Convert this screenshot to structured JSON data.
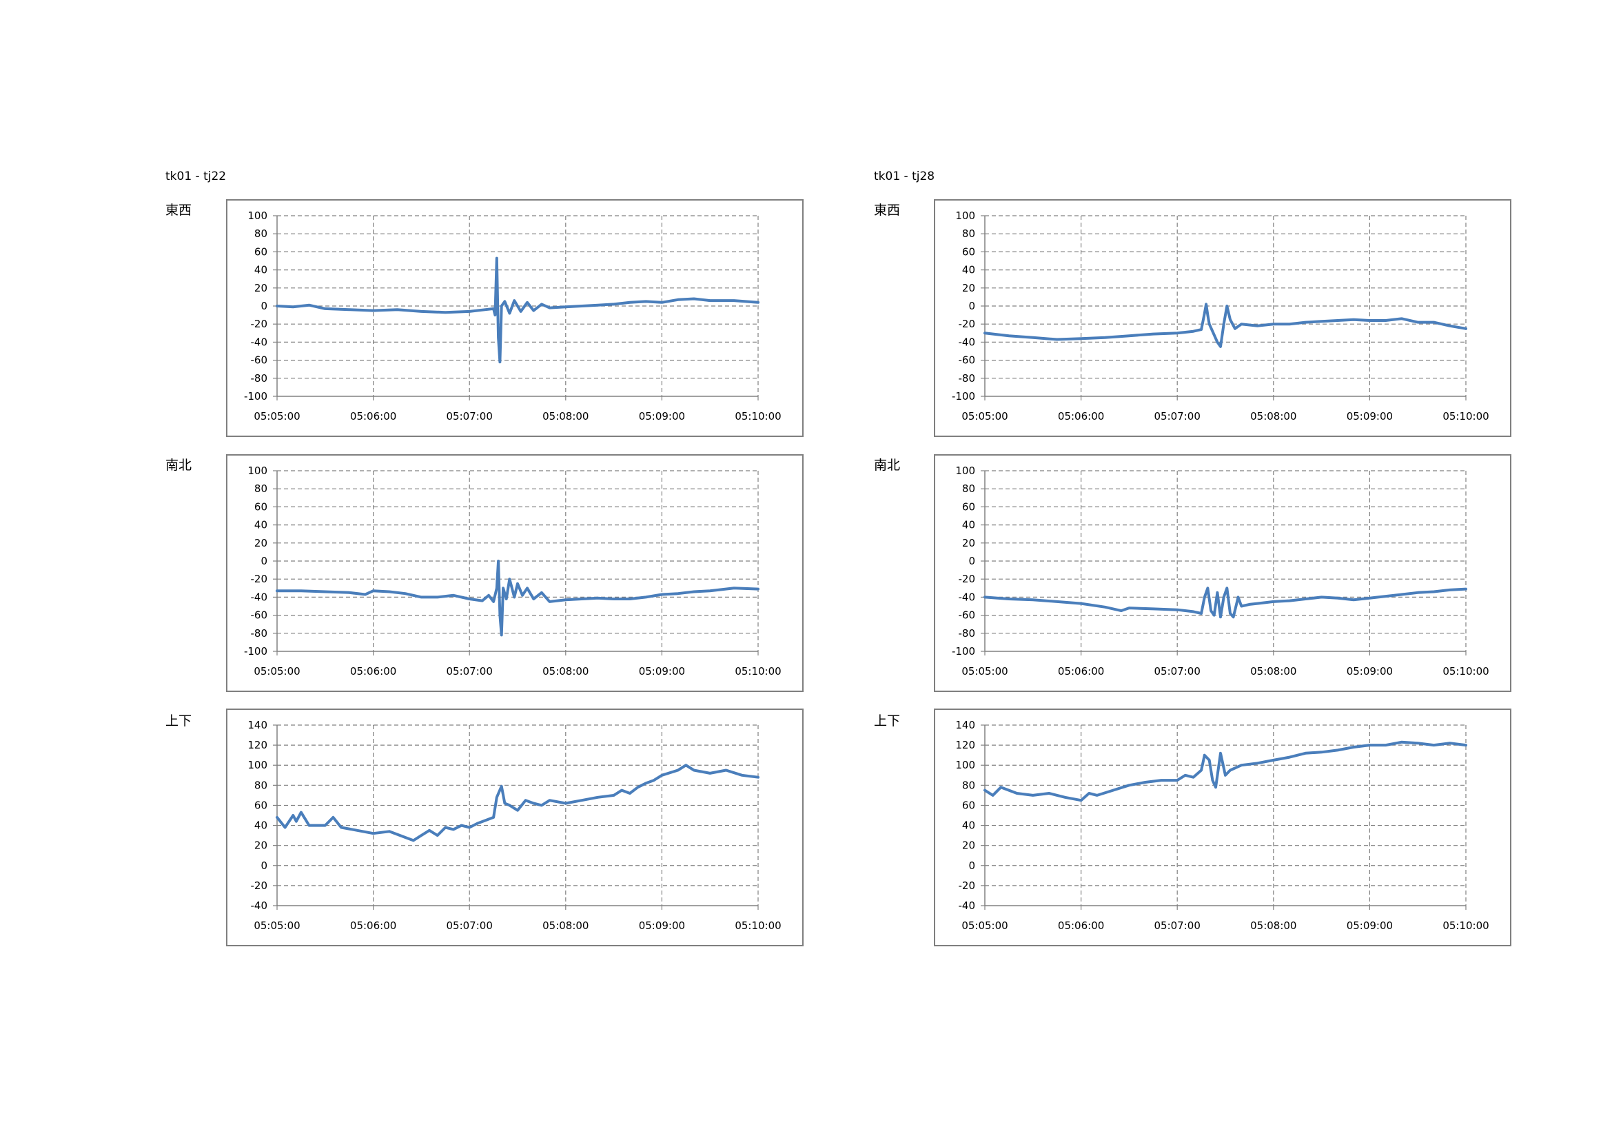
{
  "groups": [
    {
      "title": "tk01 - tj22"
    },
    {
      "title": "tk01 - tj28"
    }
  ],
  "series_color": "#4a7ebb",
  "chart_data": [
    {
      "group": "tk01 - tj22",
      "axis_label": "東西",
      "type": "line",
      "x_ticks": [
        "05:05:00",
        "05:06:00",
        "05:07:00",
        "05:08:00",
        "05:09:00",
        "05:10:00"
      ],
      "xlim_seconds": [
        0,
        300
      ],
      "ylim": [
        -100,
        100
      ],
      "y_step": 20,
      "grid": true,
      "points": [
        [
          0,
          0
        ],
        [
          10,
          -1
        ],
        [
          20,
          1
        ],
        [
          30,
          -3
        ],
        [
          45,
          -4
        ],
        [
          60,
          -5
        ],
        [
          75,
          -4
        ],
        [
          90,
          -6
        ],
        [
          105,
          -7
        ],
        [
          120,
          -6
        ],
        [
          130,
          -4
        ],
        [
          135,
          -3
        ],
        [
          136,
          -10
        ],
        [
          137,
          53
        ],
        [
          138,
          -35
        ],
        [
          139,
          -62
        ],
        [
          140,
          0
        ],
        [
          142,
          5
        ],
        [
          145,
          -8
        ],
        [
          148,
          6
        ],
        [
          152,
          -6
        ],
        [
          156,
          4
        ],
        [
          160,
          -5
        ],
        [
          165,
          2
        ],
        [
          170,
          -2
        ],
        [
          180,
          -1
        ],
        [
          190,
          0
        ],
        [
          200,
          1
        ],
        [
          210,
          2
        ],
        [
          220,
          4
        ],
        [
          230,
          5
        ],
        [
          240,
          4
        ],
        [
          250,
          7
        ],
        [
          260,
          8
        ],
        [
          270,
          6
        ],
        [
          285,
          6
        ],
        [
          300,
          4
        ]
      ]
    },
    {
      "group": "tk01 - tj22",
      "axis_label": "南北",
      "type": "line",
      "x_ticks": [
        "05:05:00",
        "05:06:00",
        "05:07:00",
        "05:08:00",
        "05:09:00",
        "05:10:00"
      ],
      "xlim_seconds": [
        0,
        300
      ],
      "ylim": [
        -100,
        100
      ],
      "y_step": 20,
      "grid": true,
      "points": [
        [
          0,
          -33
        ],
        [
          15,
          -33
        ],
        [
          30,
          -34
        ],
        [
          45,
          -35
        ],
        [
          55,
          -37
        ],
        [
          60,
          -33
        ],
        [
          70,
          -34
        ],
        [
          80,
          -36
        ],
        [
          90,
          -40
        ],
        [
          100,
          -40
        ],
        [
          110,
          -38
        ],
        [
          120,
          -42
        ],
        [
          128,
          -44
        ],
        [
          132,
          -38
        ],
        [
          135,
          -45
        ],
        [
          137,
          -30
        ],
        [
          138,
          0
        ],
        [
          139,
          -60
        ],
        [
          140,
          -82
        ],
        [
          141,
          -30
        ],
        [
          143,
          -42
        ],
        [
          145,
          -20
        ],
        [
          148,
          -40
        ],
        [
          150,
          -25
        ],
        [
          153,
          -38
        ],
        [
          156,
          -30
        ],
        [
          160,
          -42
        ],
        [
          165,
          -35
        ],
        [
          170,
          -45
        ],
        [
          180,
          -43
        ],
        [
          190,
          -42
        ],
        [
          200,
          -41
        ],
        [
          210,
          -42
        ],
        [
          220,
          -42
        ],
        [
          230,
          -40
        ],
        [
          240,
          -37
        ],
        [
          250,
          -36
        ],
        [
          260,
          -34
        ],
        [
          270,
          -33
        ],
        [
          285,
          -30
        ],
        [
          300,
          -31
        ]
      ]
    },
    {
      "group": "tk01 - tj22",
      "axis_label": "上下",
      "type": "line",
      "x_ticks": [
        "05:05:00",
        "05:06:00",
        "05:07:00",
        "05:08:00",
        "05:09:00",
        "05:10:00"
      ],
      "xlim_seconds": [
        0,
        300
      ],
      "ylim": [
        -40,
        140
      ],
      "y_step": 20,
      "grid": true,
      "points": [
        [
          0,
          48
        ],
        [
          5,
          38
        ],
        [
          10,
          50
        ],
        [
          12,
          44
        ],
        [
          15,
          53
        ],
        [
          20,
          40
        ],
        [
          30,
          40
        ],
        [
          35,
          48
        ],
        [
          40,
          38
        ],
        [
          50,
          35
        ],
        [
          60,
          32
        ],
        [
          70,
          34
        ],
        [
          80,
          28
        ],
        [
          85,
          25
        ],
        [
          90,
          30
        ],
        [
          95,
          35
        ],
        [
          100,
          30
        ],
        [
          105,
          38
        ],
        [
          110,
          36
        ],
        [
          115,
          40
        ],
        [
          120,
          38
        ],
        [
          125,
          42
        ],
        [
          130,
          45
        ],
        [
          135,
          48
        ],
        [
          137,
          68
        ],
        [
          140,
          79
        ],
        [
          142,
          62
        ],
        [
          145,
          60
        ],
        [
          150,
          55
        ],
        [
          155,
          65
        ],
        [
          160,
          62
        ],
        [
          165,
          60
        ],
        [
          170,
          65
        ],
        [
          180,
          62
        ],
        [
          190,
          65
        ],
        [
          200,
          68
        ],
        [
          210,
          70
        ],
        [
          215,
          75
        ],
        [
          220,
          72
        ],
        [
          225,
          78
        ],
        [
          230,
          82
        ],
        [
          235,
          85
        ],
        [
          240,
          90
        ],
        [
          250,
          95
        ],
        [
          255,
          100
        ],
        [
          260,
          95
        ],
        [
          270,
          92
        ],
        [
          280,
          95
        ],
        [
          290,
          90
        ],
        [
          300,
          88
        ]
      ]
    },
    {
      "group": "tk01 - tj28",
      "axis_label": "東西",
      "type": "line",
      "x_ticks": [
        "05:05:00",
        "05:06:00",
        "05:07:00",
        "05:08:00",
        "05:09:00",
        "05:10:00"
      ],
      "xlim_seconds": [
        0,
        300
      ],
      "ylim": [
        -100,
        100
      ],
      "y_step": 20,
      "grid": true,
      "points": [
        [
          0,
          -30
        ],
        [
          15,
          -33
        ],
        [
          30,
          -35
        ],
        [
          45,
          -37
        ],
        [
          60,
          -36
        ],
        [
          75,
          -35
        ],
        [
          90,
          -33
        ],
        [
          105,
          -31
        ],
        [
          120,
          -30
        ],
        [
          130,
          -28
        ],
        [
          135,
          -26
        ],
        [
          137,
          -8
        ],
        [
          138,
          2
        ],
        [
          139,
          -10
        ],
        [
          140,
          -20
        ],
        [
          142,
          -28
        ],
        [
          145,
          -40
        ],
        [
          147,
          -45
        ],
        [
          149,
          -20
        ],
        [
          151,
          0
        ],
        [
          153,
          -15
        ],
        [
          156,
          -25
        ],
        [
          160,
          -20
        ],
        [
          170,
          -22
        ],
        [
          180,
          -20
        ],
        [
          190,
          -20
        ],
        [
          200,
          -18
        ],
        [
          210,
          -17
        ],
        [
          220,
          -16
        ],
        [
          230,
          -15
        ],
        [
          240,
          -16
        ],
        [
          250,
          -16
        ],
        [
          260,
          -14
        ],
        [
          270,
          -18
        ],
        [
          280,
          -18
        ],
        [
          290,
          -22
        ],
        [
          300,
          -25
        ]
      ]
    },
    {
      "group": "tk01 - tj28",
      "axis_label": "南北",
      "type": "line",
      "x_ticks": [
        "05:05:00",
        "05:06:00",
        "05:07:00",
        "05:08:00",
        "05:09:00",
        "05:10:00"
      ],
      "xlim_seconds": [
        0,
        300
      ],
      "ylim": [
        -100,
        100
      ],
      "y_step": 20,
      "grid": true,
      "points": [
        [
          0,
          -40
        ],
        [
          15,
          -42
        ],
        [
          30,
          -43
        ],
        [
          45,
          -45
        ],
        [
          60,
          -47
        ],
        [
          75,
          -51
        ],
        [
          85,
          -55
        ],
        [
          90,
          -52
        ],
        [
          105,
          -53
        ],
        [
          120,
          -54
        ],
        [
          130,
          -56
        ],
        [
          135,
          -58
        ],
        [
          137,
          -40
        ],
        [
          139,
          -30
        ],
        [
          141,
          -55
        ],
        [
          143,
          -60
        ],
        [
          145,
          -35
        ],
        [
          147,
          -62
        ],
        [
          149,
          -40
        ],
        [
          151,
          -30
        ],
        [
          153,
          -58
        ],
        [
          155,
          -62
        ],
        [
          158,
          -40
        ],
        [
          160,
          -50
        ],
        [
          165,
          -48
        ],
        [
          170,
          -47
        ],
        [
          180,
          -45
        ],
        [
          190,
          -44
        ],
        [
          200,
          -42
        ],
        [
          210,
          -40
        ],
        [
          220,
          -41
        ],
        [
          230,
          -43
        ],
        [
          240,
          -41
        ],
        [
          250,
          -39
        ],
        [
          260,
          -37
        ],
        [
          270,
          -35
        ],
        [
          280,
          -34
        ],
        [
          290,
          -32
        ],
        [
          300,
          -31
        ]
      ]
    },
    {
      "group": "tk01 - tj28",
      "axis_label": "上下",
      "type": "line",
      "x_ticks": [
        "05:05:00",
        "05:06:00",
        "05:07:00",
        "05:08:00",
        "05:09:00",
        "05:10:00"
      ],
      "xlim_seconds": [
        0,
        300
      ],
      "ylim": [
        -40,
        140
      ],
      "y_step": 20,
      "grid": true,
      "points": [
        [
          0,
          75
        ],
        [
          5,
          70
        ],
        [
          10,
          78
        ],
        [
          20,
          72
        ],
        [
          30,
          70
        ],
        [
          40,
          72
        ],
        [
          50,
          68
        ],
        [
          60,
          65
        ],
        [
          65,
          72
        ],
        [
          70,
          70
        ],
        [
          80,
          75
        ],
        [
          90,
          80
        ],
        [
          100,
          83
        ],
        [
          110,
          85
        ],
        [
          120,
          85
        ],
        [
          125,
          90
        ],
        [
          130,
          88
        ],
        [
          135,
          95
        ],
        [
          137,
          110
        ],
        [
          140,
          105
        ],
        [
          142,
          85
        ],
        [
          144,
          78
        ],
        [
          147,
          112
        ],
        [
          150,
          90
        ],
        [
          153,
          95
        ],
        [
          160,
          100
        ],
        [
          170,
          102
        ],
        [
          180,
          105
        ],
        [
          190,
          108
        ],
        [
          200,
          112
        ],
        [
          210,
          113
        ],
        [
          220,
          115
        ],
        [
          230,
          118
        ],
        [
          240,
          120
        ],
        [
          250,
          120
        ],
        [
          260,
          123
        ],
        [
          270,
          122
        ],
        [
          280,
          120
        ],
        [
          290,
          122
        ],
        [
          300,
          120
        ]
      ]
    }
  ],
  "charts": [
    {
      "axis_label": "東西"
    },
    {
      "axis_label": "南北"
    },
    {
      "axis_label": "上下"
    },
    {
      "axis_label": "東西"
    },
    {
      "axis_label": "南北"
    },
    {
      "axis_label": "上下"
    }
  ]
}
